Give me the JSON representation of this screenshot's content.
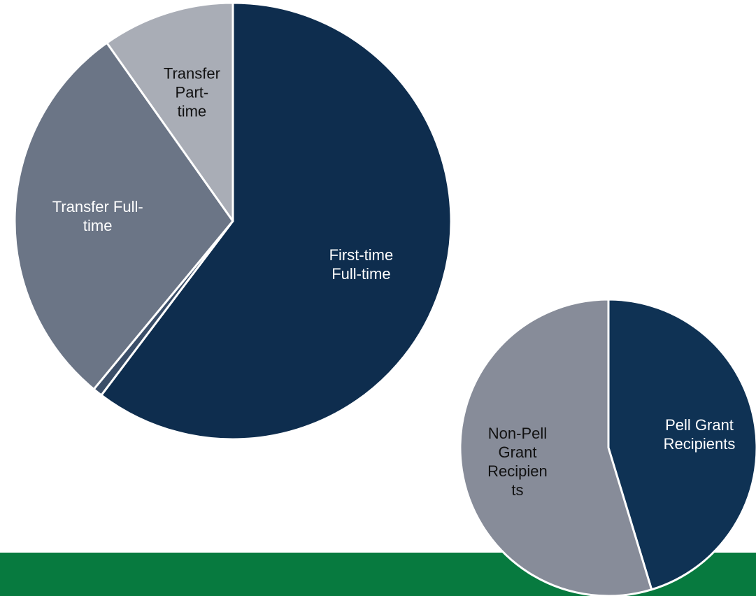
{
  "chart_data": [
    {
      "type": "pie",
      "categories": [
        [
          "First-time",
          "Full-time"
        ],
        null,
        [
          "Transfer Full-",
          "time"
        ],
        [
          "Transfer",
          "Part-",
          "time"
        ]
      ],
      "values": [
        60.3,
        0.7,
        29.2,
        9.8
      ],
      "colors": [
        "#0e2d4e",
        "#3b4e68",
        "#6b7586",
        "#a9adb6"
      ]
    },
    {
      "type": "pie",
      "categories": [
        [
          "Pell Grant",
          "Recipients"
        ],
        [
          "Non-Pell",
          "Grant",
          "Recipien",
          "ts"
        ]
      ],
      "values": [
        45.3,
        54.7
      ],
      "colors": [
        "#0f3254",
        "#878c99"
      ]
    }
  ]
}
